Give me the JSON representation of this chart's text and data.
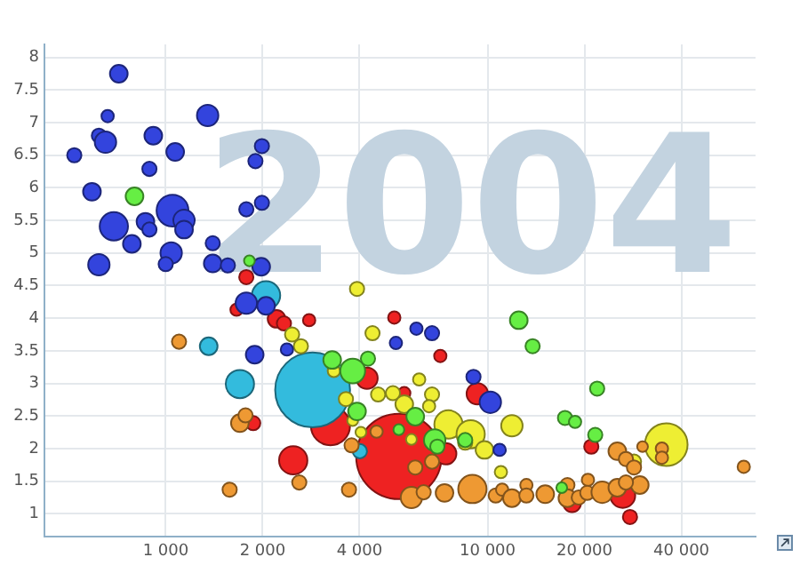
{
  "chart_data": {
    "type": "bubble",
    "log": "x",
    "grid": true,
    "legend": false,
    "annotations": [
      "2004"
    ],
    "xlim": [
      420,
      68000
    ],
    "ylim": [
      0.65,
      8.2
    ],
    "xticks": [
      {
        "value": 1000,
        "label": "1 000"
      },
      {
        "value": 2000,
        "label": "2 000"
      },
      {
        "value": 4000,
        "label": "4 000"
      },
      {
        "value": 10000,
        "label": "10 000"
      },
      {
        "value": 20000,
        "label": "20 000"
      },
      {
        "value": 40000,
        "label": "40 000"
      }
    ],
    "yticks": [
      1,
      1.5,
      2,
      2.5,
      3,
      3.5,
      4,
      4.5,
      5,
      5.5,
      6,
      6.5,
      7,
      7.5,
      8
    ],
    "series": [
      {
        "color": "#ee2222",
        "x": [
          5300,
          3250,
          2490,
          1870,
          1660,
          2210,
          2330,
          2790,
          4220,
          1780,
          5130,
          7130,
          5510,
          9290,
          7410,
          21000,
          18300,
          26300,
          27700
        ],
        "values": [
          1.88,
          2.35,
          1.82,
          2.39,
          4.13,
          3.99,
          3.92,
          3.97,
          3.08,
          4.63,
          4.01,
          3.42,
          2.85,
          2.84,
          1.92,
          2.03,
          1.16,
          1.28,
          0.95
        ],
        "sizes": [
          1,
          0.21,
          0.11,
          0.028,
          0.021,
          0.043,
          0.028,
          0.021,
          0.063,
          0.028,
          0.021,
          0.021,
          0.021,
          0.063,
          0.063,
          0.028,
          0.043,
          0.085,
          0.028
        ]
      },
      {
        "color": "#33bbdd",
        "x": [
          2860,
          1700,
          1360,
          2050,
          4010
        ],
        "values": [
          2.9,
          2.99,
          3.57,
          4.35,
          1.96
        ],
        "sizes": [
          0.77,
          0.11,
          0.043,
          0.11,
          0.028
        ]
      },
      {
        "color": "#3344dd",
        "x": [
          715,
          660,
          620,
          650,
          520,
          915,
          1350,
          1070,
          890,
          590,
          1050,
          1140,
          1140,
          690,
          865,
          890,
          785,
          1040,
          1000,
          620,
          1400,
          1400,
          1560,
          1990,
          1900,
          1990,
          1780,
          1980,
          1780,
          2050,
          1890,
          2380,
          6010,
          6720,
          5190,
          9040,
          10200,
          10900
        ],
        "values": [
          7.75,
          7.1,
          6.8,
          6.7,
          6.5,
          6.8,
          7.11,
          6.55,
          6.29,
          5.94,
          5.65,
          5.5,
          5.36,
          5.41,
          5.48,
          5.36,
          5.14,
          5,
          4.83,
          4.82,
          5.15,
          4.84,
          4.81,
          6.64,
          6.41,
          5.77,
          5.67,
          4.79,
          4.23,
          4.19,
          3.44,
          3.52,
          3.84,
          3.77,
          3.62,
          3.1,
          2.71,
          1.98
        ],
        "sizes": [
          0.043,
          0.021,
          0.028,
          0.063,
          0.028,
          0.043,
          0.063,
          0.043,
          0.028,
          0.043,
          0.14,
          0.063,
          0.043,
          0.11,
          0.043,
          0.028,
          0.043,
          0.063,
          0.028,
          0.063,
          0.028,
          0.043,
          0.028,
          0.028,
          0.028,
          0.028,
          0.028,
          0.043,
          0.063,
          0.043,
          0.043,
          0.021,
          0.021,
          0.028,
          0.021,
          0.028,
          0.063,
          0.021
        ]
      },
      {
        "color": "#66ee44",
        "x": [
          800,
          1820,
          3290,
          3810,
          4250,
          3930,
          12500,
          13800,
          21900,
          17400,
          18700,
          21600,
          5960,
          6850,
          6980,
          5300,
          17000,
          8520
        ],
        "values": [
          5.87,
          4.88,
          3.36,
          3.19,
          3.38,
          2.57,
          3.97,
          3.57,
          2.92,
          2.47,
          2.41,
          2.21,
          2.49,
          2.13,
          2.03,
          2.29,
          1.4,
          2.13
        ],
        "sizes": [
          0.043,
          0.016,
          0.043,
          0.085,
          0.028,
          0.043,
          0.043,
          0.028,
          0.028,
          0.028,
          0.021,
          0.028,
          0.043,
          0.063,
          0.028,
          0.016,
          0.016,
          0.028
        ]
      },
      {
        "color": "#eeee33",
        "x": [
          3930,
          2470,
          2630,
          3330,
          3630,
          3810,
          4040,
          4390,
          4570,
          6130,
          5080,
          5510,
          6720,
          6580,
          7560,
          8860,
          8520,
          9780,
          11900,
          11000,
          35900,
          28500,
          5800
        ],
        "values": [
          4.45,
          3.75,
          3.57,
          3.19,
          2.76,
          2.43,
          2.25,
          3.77,
          2.83,
          3.06,
          2.85,
          2.68,
          2.83,
          2.65,
          2.37,
          2.22,
          2.09,
          1.98,
          2.35,
          1.64,
          2.06,
          1.8,
          2.14
        ],
        "sizes": [
          0.028,
          0.028,
          0.028,
          0.021,
          0.028,
          0.016,
          0.016,
          0.028,
          0.028,
          0.021,
          0.028,
          0.043,
          0.028,
          0.021,
          0.11,
          0.11,
          0.028,
          0.043,
          0.063,
          0.021,
          0.25,
          0.028,
          0.016
        ]
      },
      {
        "color": "#ee9933",
        "x": [
          1100,
          1700,
          1770,
          1580,
          2600,
          3710,
          3780,
          4520,
          5800,
          6330,
          7350,
          8970,
          10600,
          11100,
          11900,
          13200,
          13200,
          15100,
          17700,
          17700,
          19200,
          20500,
          20400,
          22700,
          25300,
          25300,
          26900,
          28500,
          29700,
          26900,
          30300,
          34800,
          34800,
          62500,
          5960,
          6720
        ],
        "values": [
          3.64,
          2.39,
          2.51,
          1.37,
          1.48,
          1.37,
          2.05,
          2.26,
          1.25,
          1.33,
          1.32,
          1.38,
          1.28,
          1.37,
          1.24,
          1.44,
          1.28,
          1.3,
          1.44,
          1.24,
          1.25,
          1.52,
          1.32,
          1.33,
          1.4,
          1.96,
          1.84,
          1.71,
          1.44,
          1.48,
          2.03,
          2,
          1.86,
          1.72,
          1.71,
          1.8
        ],
        "sizes": [
          0.028,
          0.043,
          0.028,
          0.028,
          0.028,
          0.028,
          0.028,
          0.021,
          0.063,
          0.028,
          0.043,
          0.11,
          0.028,
          0.021,
          0.043,
          0.021,
          0.028,
          0.043,
          0.028,
          0.043,
          0.028,
          0.021,
          0.028,
          0.063,
          0.043,
          0.043,
          0.028,
          0.028,
          0.043,
          0.028,
          0.016,
          0.021,
          0.021,
          0.021,
          0.028,
          0.028
        ]
      }
    ]
  }
}
